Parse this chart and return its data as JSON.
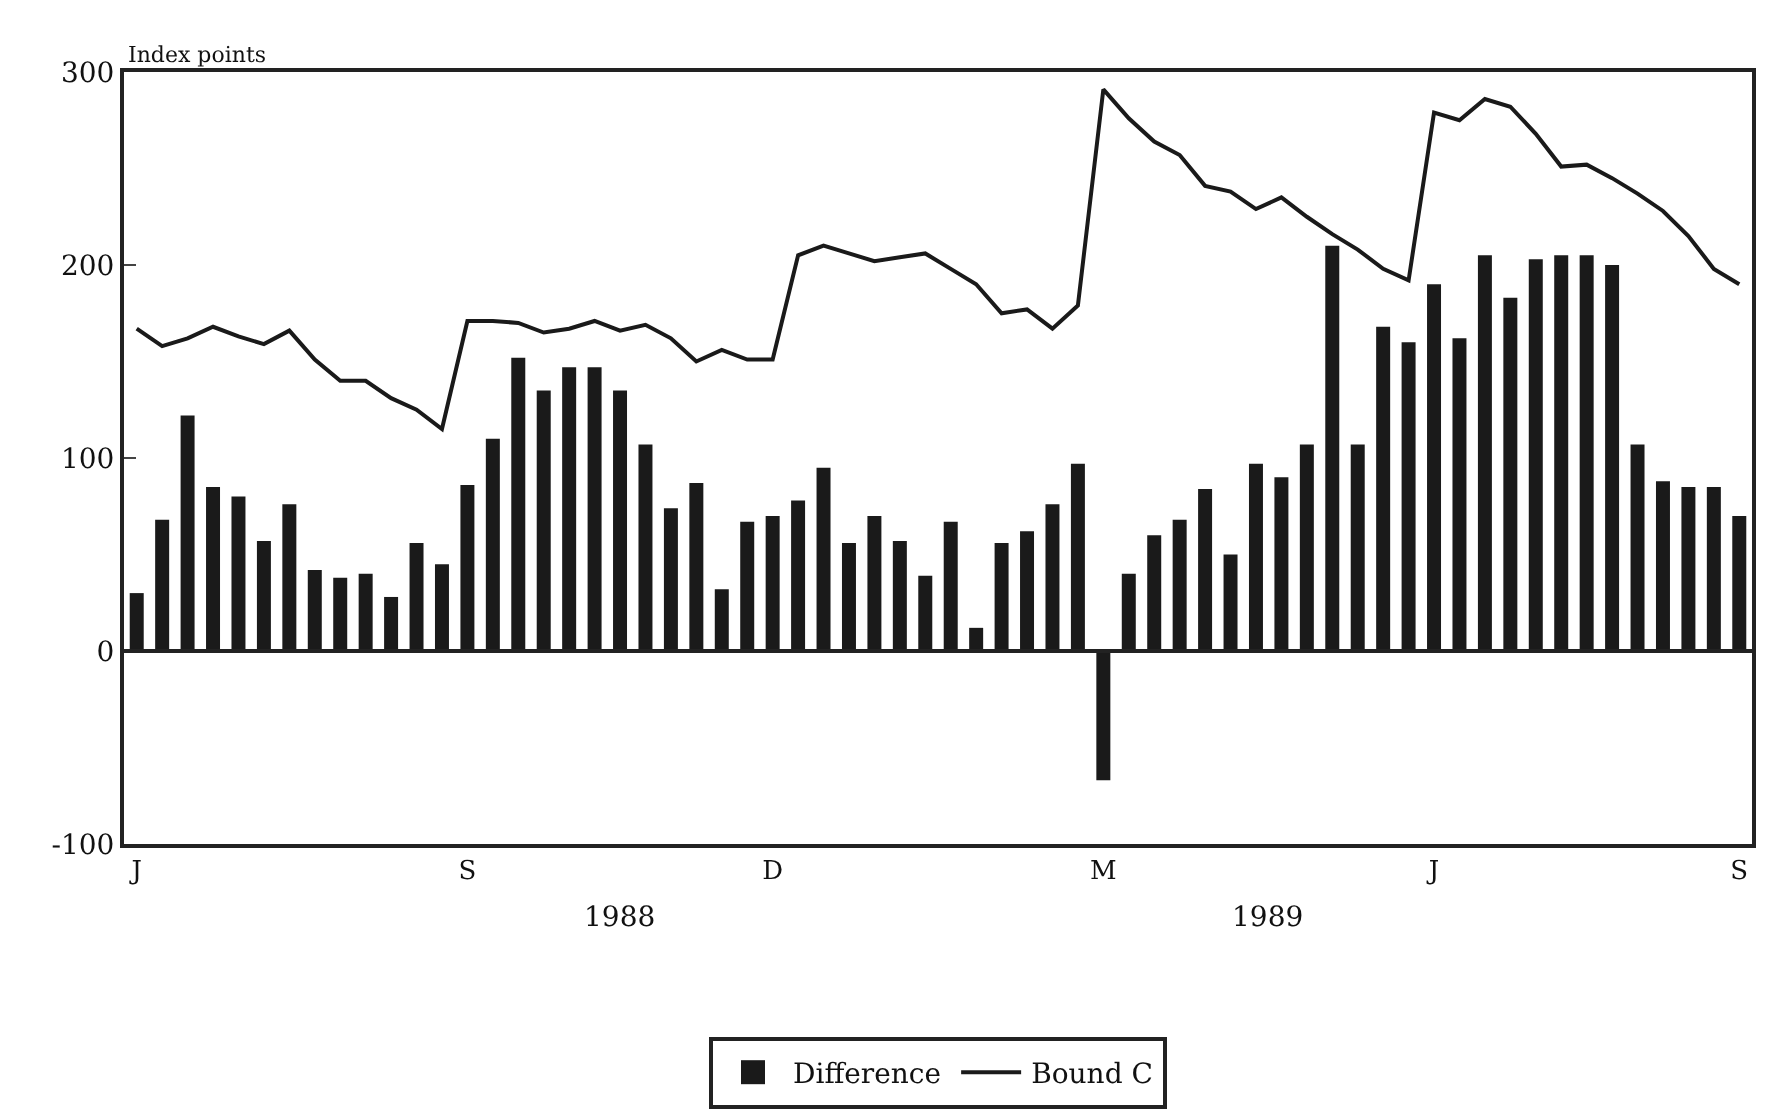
{
  "chart_data": {
    "type": "bar",
    "ylabel": "Index points",
    "categories": [
      "J",
      null,
      null,
      null,
      null,
      null,
      null,
      null,
      null,
      null,
      null,
      null,
      null,
      "S",
      null,
      null,
      null,
      null,
      null,
      null,
      null,
      null,
      null,
      null,
      null,
      "D",
      null,
      null,
      null,
      null,
      null,
      null,
      null,
      null,
      null,
      null,
      null,
      null,
      "M",
      null,
      null,
      null,
      null,
      null,
      null,
      null,
      null,
      null,
      null,
      null,
      null,
      "J",
      null,
      null,
      null,
      null,
      null,
      null,
      null,
      null,
      null,
      null,
      null,
      "S"
    ],
    "series": [
      {
        "name": "Difference",
        "color": "#1a1a1a",
        "values": [
          30,
          68,
          122,
          85,
          80,
          57,
          76,
          42,
          38,
          40,
          28,
          56,
          45,
          86,
          110,
          152,
          135,
          147,
          147,
          135,
          107,
          74,
          87,
          32,
          67,
          70,
          78,
          95,
          56,
          70,
          57,
          39,
          67,
          12,
          56,
          62,
          76,
          97,
          -67,
          40,
          60,
          68,
          84,
          50,
          97,
          90,
          107,
          210,
          107,
          168,
          160,
          190,
          162,
          205,
          183,
          203,
          205,
          205,
          200,
          107,
          88,
          85,
          85,
          70
        ]
      },
      {
        "name": "Bound C",
        "type": "line",
        "color": "#1a1a1a",
        "values": [
          167,
          158,
          162,
          168,
          163,
          159,
          166,
          151,
          140,
          140,
          131,
          125,
          115,
          171,
          171,
          170,
          165,
          167,
          171,
          166,
          169,
          162,
          150,
          156,
          151,
          151,
          205,
          210,
          206,
          202,
          204,
          206,
          198,
          190,
          175,
          177,
          167,
          179,
          291,
          276,
          264,
          257,
          241,
          238,
          229,
          235,
          225,
          216,
          208,
          198,
          192,
          279,
          275,
          286,
          282,
          268,
          251,
          252,
          245,
          237,
          228,
          215,
          198,
          190
        ]
      }
    ],
    "annotations": [
      "1988",
      "1989"
    ],
    "ylim": [
      -100,
      300
    ],
    "yticks": [
      -100,
      0,
      100,
      200,
      300
    ],
    "ref_lines": [
      {
        "axis": "y",
        "value": 0,
        "color": "#222222"
      }
    ],
    "grid": false,
    "legend": "bottom",
    "marker": "none",
    "line_style": "solid"
  }
}
